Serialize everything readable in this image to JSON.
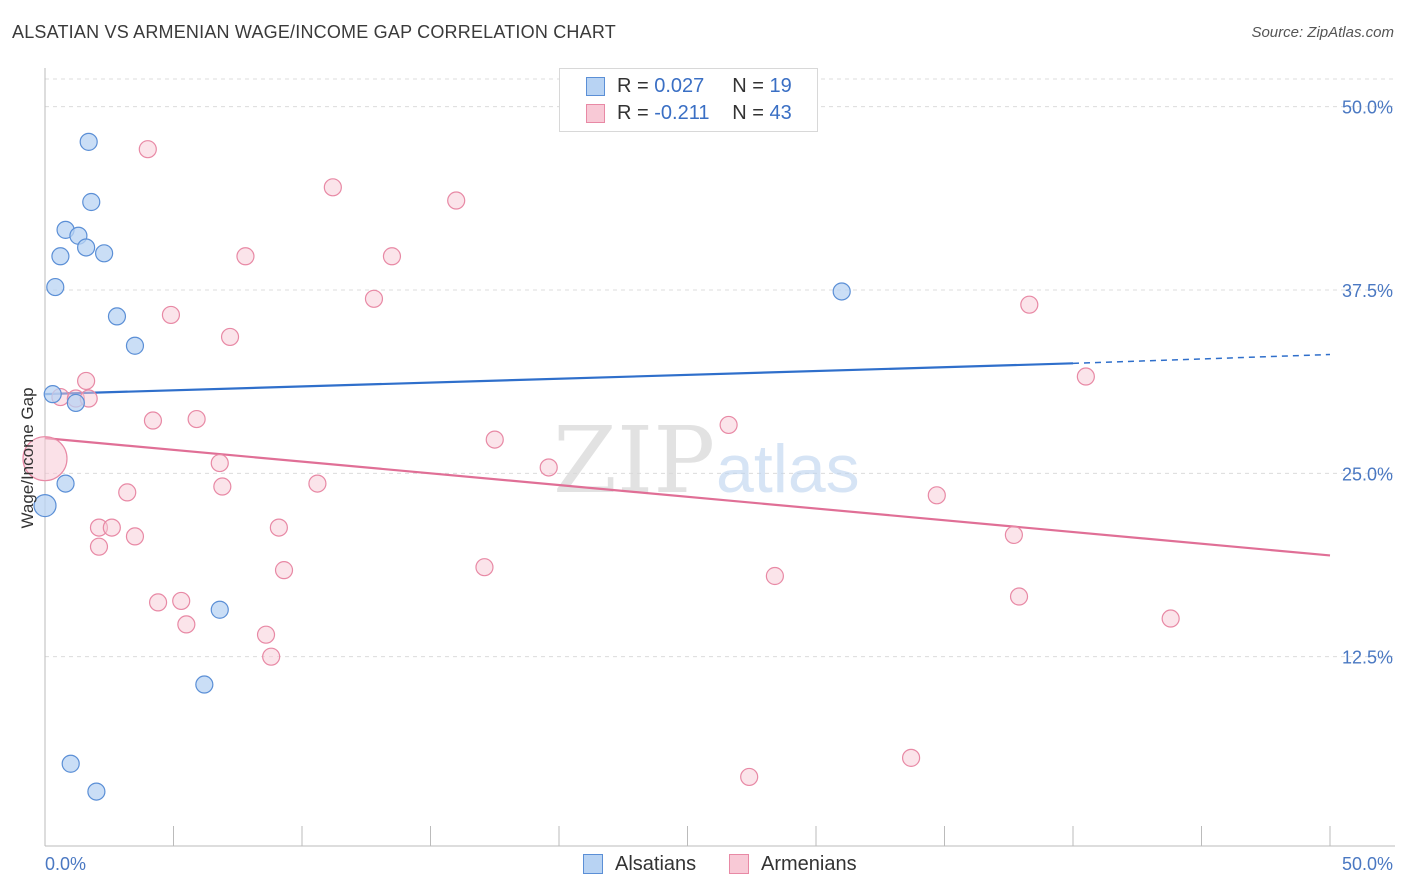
{
  "title": "ALSATIAN VS ARMENIAN WAGE/INCOME GAP CORRELATION CHART",
  "source": "Source: ZipAtlas.com",
  "watermark": {
    "zip": "ZIP",
    "atlas": "atlas"
  },
  "legend": {
    "rows": [
      {
        "r_label": "R = ",
        "r_value": "0.027",
        "n_label": "N = ",
        "n_value": "19"
      },
      {
        "r_label": "R = ",
        "r_value": "-0.211",
        "n_label": "N = ",
        "n_value": "43"
      }
    ]
  },
  "bottom_legend": {
    "alsatians": "Alsatians",
    "armenians": "Armenians"
  },
  "colors": {
    "alsatian_fill": "#b8d3f3",
    "alsatian_stroke": "#5b8fd6",
    "alsatian_line": "#2f6fcb",
    "armenian_fill": "#f8c9d6",
    "armenian_stroke": "#e889a5",
    "armenian_line": "#e06f96",
    "tick": "#4a78c2",
    "grid": "#dcdcdc"
  },
  "chart_data": {
    "type": "scatter",
    "title": "ALSATIAN VS ARMENIAN WAGE/INCOME GAP CORRELATION CHART",
    "xlabel": "",
    "ylabel": "Wage/Income Gap",
    "xlim": [
      0,
      50
    ],
    "ylim": [
      0,
      52.5
    ],
    "x_tick_labels": [
      "0.0%",
      "50.0%"
    ],
    "y_ticks": [
      12.5,
      25.0,
      37.5,
      50.0
    ],
    "y_tick_labels": [
      "12.5%",
      "25.0%",
      "37.5%",
      "50.0%"
    ],
    "series": [
      {
        "name": "Alsatians",
        "r": 0.027,
        "n": 19,
        "points": [
          [
            1.7,
            47.6
          ],
          [
            1.8,
            43.5
          ],
          [
            0.8,
            41.6
          ],
          [
            1.3,
            41.2
          ],
          [
            1.6,
            40.4
          ],
          [
            0.6,
            39.8
          ],
          [
            2.3,
            40.0
          ],
          [
            0.4,
            37.7
          ],
          [
            2.8,
            35.7
          ],
          [
            3.5,
            33.7
          ],
          [
            0.3,
            30.4
          ],
          [
            1.2,
            29.8
          ],
          [
            0.8,
            24.3
          ],
          [
            0.0,
            22.8
          ],
          [
            6.8,
            15.7
          ],
          [
            6.2,
            10.6
          ],
          [
            1.0,
            5.2
          ],
          [
            2.0,
            3.3
          ],
          [
            31.0,
            37.4
          ]
        ],
        "trend": {
          "x0": 0,
          "y0": 30.4,
          "x1": 40,
          "y1": 32.5,
          "dash_to": 50,
          "dash_y": 33.1
        }
      },
      {
        "name": "Armenians",
        "r": -0.211,
        "n": 43,
        "points": [
          [
            0.0,
            26.0
          ],
          [
            0.6,
            30.2
          ],
          [
            1.2,
            30.1
          ],
          [
            1.6,
            31.3
          ],
          [
            4.0,
            47.1
          ],
          [
            11.2,
            44.5
          ],
          [
            16.0,
            43.6
          ],
          [
            7.8,
            39.8
          ],
          [
            13.5,
            39.8
          ],
          [
            12.8,
            36.9
          ],
          [
            4.9,
            35.8
          ],
          [
            7.2,
            34.3
          ],
          [
            2.1,
            21.3
          ],
          [
            2.6,
            21.3
          ],
          [
            2.1,
            20.0
          ],
          [
            3.2,
            23.7
          ],
          [
            3.5,
            20.7
          ],
          [
            4.2,
            28.6
          ],
          [
            5.9,
            28.7
          ],
          [
            6.8,
            25.7
          ],
          [
            6.9,
            24.1
          ],
          [
            9.1,
            21.3
          ],
          [
            10.6,
            24.3
          ],
          [
            9.3,
            18.4
          ],
          [
            4.4,
            16.2
          ],
          [
            5.3,
            16.3
          ],
          [
            5.5,
            14.7
          ],
          [
            8.6,
            14.0
          ],
          [
            8.8,
            12.5
          ],
          [
            17.1,
            18.6
          ],
          [
            17.5,
            27.3
          ],
          [
            19.6,
            25.4
          ],
          [
            26.6,
            28.3
          ],
          [
            28.4,
            18.0
          ],
          [
            34.7,
            23.5
          ],
          [
            37.7,
            20.8
          ],
          [
            37.9,
            16.6
          ],
          [
            38.3,
            36.5
          ],
          [
            40.5,
            31.6
          ],
          [
            43.8,
            15.1
          ],
          [
            33.7,
            5.6
          ],
          [
            27.4,
            4.3
          ],
          [
            1.7,
            30.1
          ]
        ],
        "trend": {
          "x0": 0,
          "y0": 27.4,
          "x1": 50,
          "y1": 19.4
        }
      }
    ]
  }
}
